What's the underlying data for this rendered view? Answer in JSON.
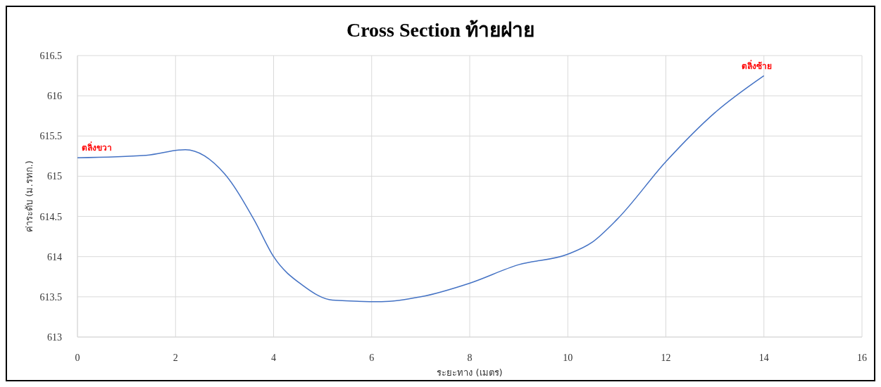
{
  "chart_data": {
    "type": "line",
    "title": "Cross Section ท้ายฝาย",
    "xlabel": "ระยะทาง (เมตร)",
    "ylabel": "ค่าระดับ (ม.รทก.)",
    "x": [
      0,
      1.4,
      2.2,
      3,
      3.6,
      4,
      4.6,
      5.2,
      6.2,
      7,
      8,
      9,
      10,
      10.5,
      11,
      12,
      13,
      14
    ],
    "series": [
      {
        "color": "#4472c4",
        "values": [
          615.23,
          615.26,
          615.33,
          615.03,
          614.46,
          614.0,
          613.64,
          613.46,
          613.44,
          613.5,
          613.67,
          613.9,
          614.03,
          614.18,
          614.46,
          615.18,
          615.79,
          616.25
        ]
      }
    ],
    "xlim": [
      0,
      16
    ],
    "xticks": [
      0,
      2,
      4,
      6,
      8,
      10,
      12,
      14,
      16
    ],
    "ylim": [
      613,
      616.5
    ],
    "yticks": [
      613,
      613.5,
      614,
      614.5,
      615,
      615.5,
      616,
      616.5
    ],
    "grid": true,
    "annotations": [
      {
        "text": "ตลิ่งขวา",
        "x": 0,
        "y": 615.23
      },
      {
        "text": "ตลิ่งซ้าย",
        "x": 14,
        "y": 616.25
      }
    ]
  }
}
